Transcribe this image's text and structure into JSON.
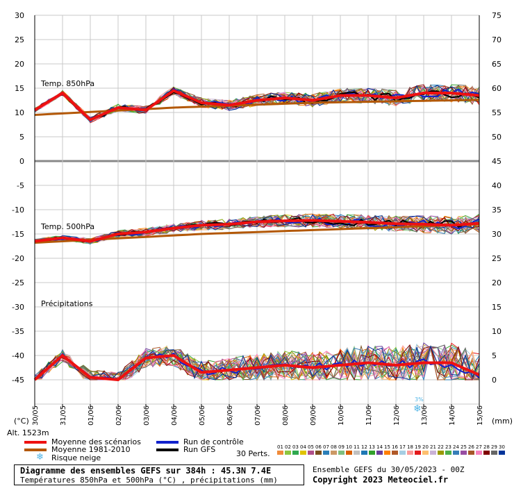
{
  "chart_data": {
    "type": "line",
    "title": "Diagramme des ensembles GEFS sur 384h : 45.3N 7.4E",
    "subtitle": "Températures 850hPa et 500hPa (°C) , précipitations (mm)",
    "left_axis_unit": "(°C)",
    "right_axis_unit": "(mm)",
    "altitude_label": "Alt. 1523m",
    "left_ticks": [
      30,
      25,
      20,
      15,
      10,
      5,
      0,
      -5,
      -10,
      -15,
      -20,
      -25,
      -30,
      -35,
      -40,
      -45
    ],
    "right_ticks_upper": [
      75,
      70,
      65,
      60,
      55,
      50,
      45
    ],
    "right_ticks_lower": [
      40,
      35,
      30,
      25,
      20,
      15,
      10,
      5,
      0
    ],
    "section_labels": [
      "Temp. 850hPa",
      "Temp. 500hPa",
      "Précipitations"
    ],
    "x_dates": [
      "30/05",
      "31/05",
      "01/06",
      "02/06",
      "03/06",
      "04/06",
      "05/06",
      "06/06",
      "07/06",
      "08/06",
      "09/06",
      "10/06",
      "11/06",
      "12/06",
      "13/06",
      "14/06",
      "15/06"
    ],
    "snow_risk_marker": {
      "date_index": 13.8,
      "label": "3%"
    },
    "series_summary": [
      {
        "name": "Moyenne des scénarios",
        "color": "#ee1111",
        "t850": [
          10.5,
          14,
          8.5,
          11,
          10.5,
          14.5,
          12,
          11.5,
          12.5,
          13,
          12.5,
          13.5,
          13.5,
          13,
          14,
          14,
          13.5
        ],
        "t500": [
          -16.5,
          -15.8,
          -16.5,
          -15,
          -14.6,
          -13.8,
          -13.2,
          -13,
          -12.5,
          -12.3,
          -12.2,
          -12.4,
          -12.6,
          -12.9,
          -13.0,
          -13.2,
          -12.8
        ],
        "precip": [
          0,
          5,
          0.5,
          0,
          4.5,
          5,
          1.5,
          2,
          2.5,
          3,
          2.5,
          3,
          3.5,
          3,
          3.5,
          3.5,
          1
        ]
      },
      {
        "name": "Moyenne 1981-2010",
        "color": "#b35806",
        "t850": [
          9.5,
          9.8,
          10.1,
          10.4,
          10.7,
          11.0,
          11.2,
          11.4,
          11.6,
          11.8,
          12.0,
          12.1,
          12.2,
          12.3,
          12.4,
          12.5,
          12.6
        ],
        "t500": [
          -16.8,
          -16.5,
          -16.2,
          -15.9,
          -15.6,
          -15.3,
          -15.0,
          -14.8,
          -14.6,
          -14.4,
          -14.2,
          -14.0,
          -13.8,
          -13.6,
          -13.4,
          -13.2,
          -13.0
        ]
      },
      {
        "name": "Run de contrôle",
        "color": "#1122cc"
      },
      {
        "name": "Run GFS",
        "color": "#000000"
      }
    ],
    "perturbations_label": "30 Perts.",
    "grid": true
  },
  "legend": [
    {
      "label": "Moyenne des scénarios",
      "color": "#ee1111"
    },
    {
      "label": "Moyenne 1981-2010",
      "color": "#b35806"
    },
    {
      "label": "Run de contrôle",
      "color": "#1122cc"
    },
    {
      "label": "Run GFS",
      "color": "#000000"
    },
    {
      "label": "Risque neige",
      "color": "#4fb4e6"
    }
  ],
  "perturbations": {
    "label": "30 Perts.",
    "numbers": [
      "01",
      "02",
      "03",
      "04",
      "05",
      "06",
      "07",
      "08",
      "09",
      "10",
      "11",
      "12",
      "13",
      "14",
      "15",
      "16",
      "17",
      "18",
      "19",
      "20",
      "21",
      "22",
      "23",
      "24",
      "25",
      "26",
      "27",
      "28",
      "29",
      "30"
    ],
    "colors": [
      "#f08b3a",
      "#8dc63f",
      "#2fa84f",
      "#e0c300",
      "#b0508a",
      "#7a4f1e",
      "#2c7fb8",
      "#cc9966",
      "#7fbf7f",
      "#d95f02",
      "#c0c0c0",
      "#1f78b4",
      "#33a02c",
      "#6a3d9a",
      "#ff7f00",
      "#b15928",
      "#a6cee3",
      "#fb9a99",
      "#e31a1c",
      "#fdbf6f",
      "#cab2d6",
      "#999900",
      "#4daf4a",
      "#377eb8",
      "#984ea3",
      "#a65628",
      "#f781bf",
      "#800000",
      "#666666",
      "#003399"
    ]
  },
  "footer": {
    "title": "Diagramme des ensembles GEFS sur 384h : 45.3N 7.4E",
    "subtitle": "Températures 850hPa et 500hPa (°C) , précipitations (mm)",
    "run": "Ensemble GEFS du 30/05/2023 - 00Z",
    "copyright": "Copyright 2023 Meteociel.fr"
  }
}
